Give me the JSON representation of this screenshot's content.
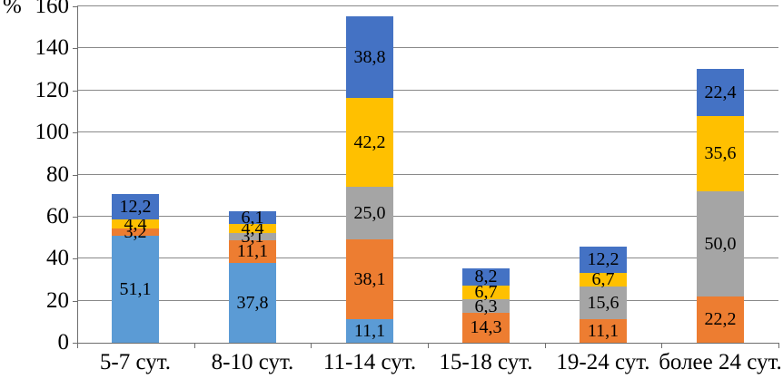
{
  "chart_data": {
    "type": "bar",
    "stacked": true,
    "title": "",
    "ylabel": "%",
    "xlabel": "",
    "ylim": [
      0,
      160
    ],
    "ytick_step": 20,
    "ytick_labels": [
      "0",
      "20",
      "40",
      "60",
      "80",
      "100",
      "120",
      "140",
      "160"
    ],
    "grid": true,
    "legend": false,
    "decimal_separator": ",",
    "categories": [
      "5-7 сут.",
      "8-10 сут.",
      "11-14 сут.",
      "15-18 сут.",
      "19-24 сут.",
      "более 24 сут."
    ],
    "series": [
      {
        "name": "light-blue",
        "color": "#5B9BD5",
        "values": [
          51.1,
          37.8,
          11.1,
          0,
          0,
          0
        ],
        "labels": [
          "51,1",
          "37,8",
          "11,1",
          "",
          "",
          ""
        ]
      },
      {
        "name": "orange",
        "color": "#ED7D31",
        "values": [
          3.2,
          11.1,
          38.1,
          14.3,
          11.1,
          22.2
        ],
        "labels": [
          "3,2",
          "11,1",
          "38,1",
          "14,3",
          "11,1",
          "22,2"
        ]
      },
      {
        "name": "gray",
        "color": "#A5A5A5",
        "values": [
          0,
          3.1,
          25.0,
          6.3,
          15.6,
          50.0
        ],
        "labels": [
          "",
          "3,1",
          "25,0",
          "6,3",
          "15,6",
          "50,0"
        ]
      },
      {
        "name": "yellow",
        "color": "#FFC000",
        "values": [
          4.4,
          4.4,
          42.2,
          6.7,
          6.7,
          35.6
        ],
        "labels": [
          "4,4",
          "4,4",
          "42,2",
          "6,7",
          "6,7",
          "35,6"
        ]
      },
      {
        "name": "dark-blue",
        "color": "#4472C4",
        "values": [
          12.2,
          6.1,
          38.8,
          8.2,
          12.2,
          22.4
        ],
        "labels": [
          "12,2",
          "6,1",
          "38,8",
          "8,2",
          "12,2",
          "22,4"
        ]
      }
    ],
    "totals": [
      70.9,
      62.5,
      155.2,
      35.5,
      45.6,
      130.2
    ]
  }
}
